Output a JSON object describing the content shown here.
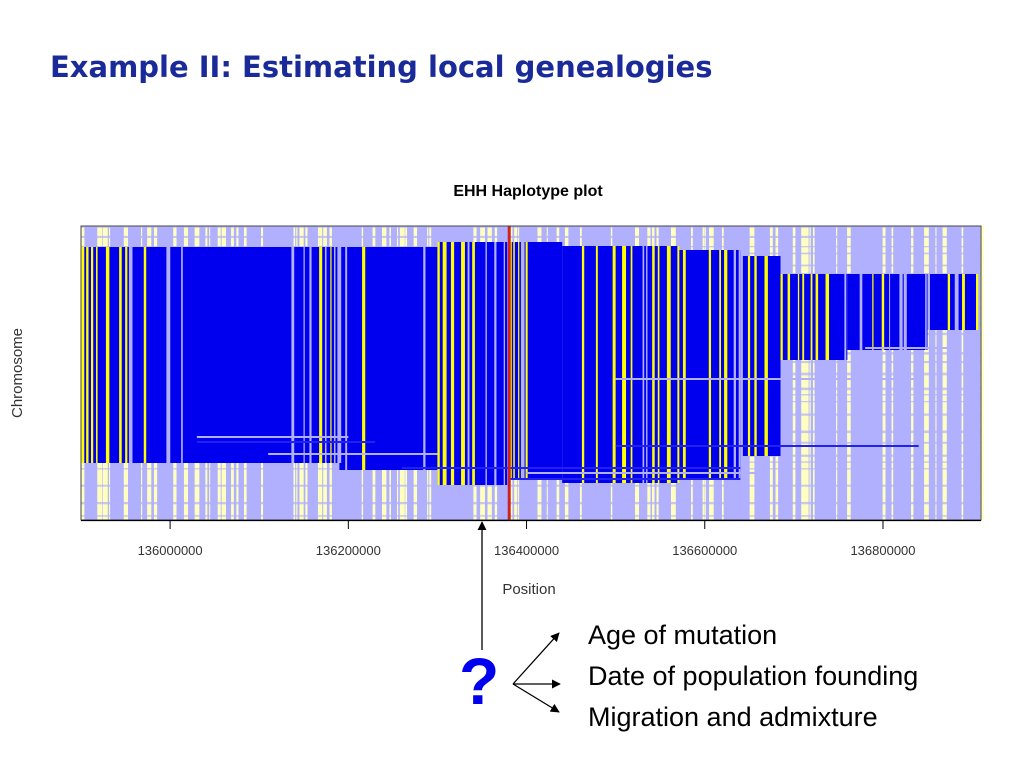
{
  "slide": {
    "title": "Example II: Estimating local genealogies"
  },
  "chart_data": {
    "type": "heatmap",
    "title": "EHH Haplotype plot",
    "xlabel": "Position",
    "ylabel": "Chromosome",
    "xlim": [
      135900000,
      136910000
    ],
    "x_ticks": [
      136000000,
      136200000,
      136400000,
      136600000,
      136800000
    ],
    "x_tick_labels": [
      "136000000",
      "136200000",
      "136400000",
      "136600000",
      "136800000"
    ],
    "grid": false,
    "colors": {
      "extended_haplotype": "#0000ee",
      "extended_haplotype_shade": "#2222ee",
      "variant_site": "#ffff00",
      "background_light": "#b0b0ff",
      "background_pale": "#ffffc0",
      "core_snp_marker": "#cc2222"
    },
    "core_snp_position": 136380000,
    "annotated_position": 136340000
  },
  "annotation": {
    "question_mark": "?",
    "outcomes": [
      "Age of mutation",
      "Date of population founding",
      "Migration and admixture"
    ]
  }
}
